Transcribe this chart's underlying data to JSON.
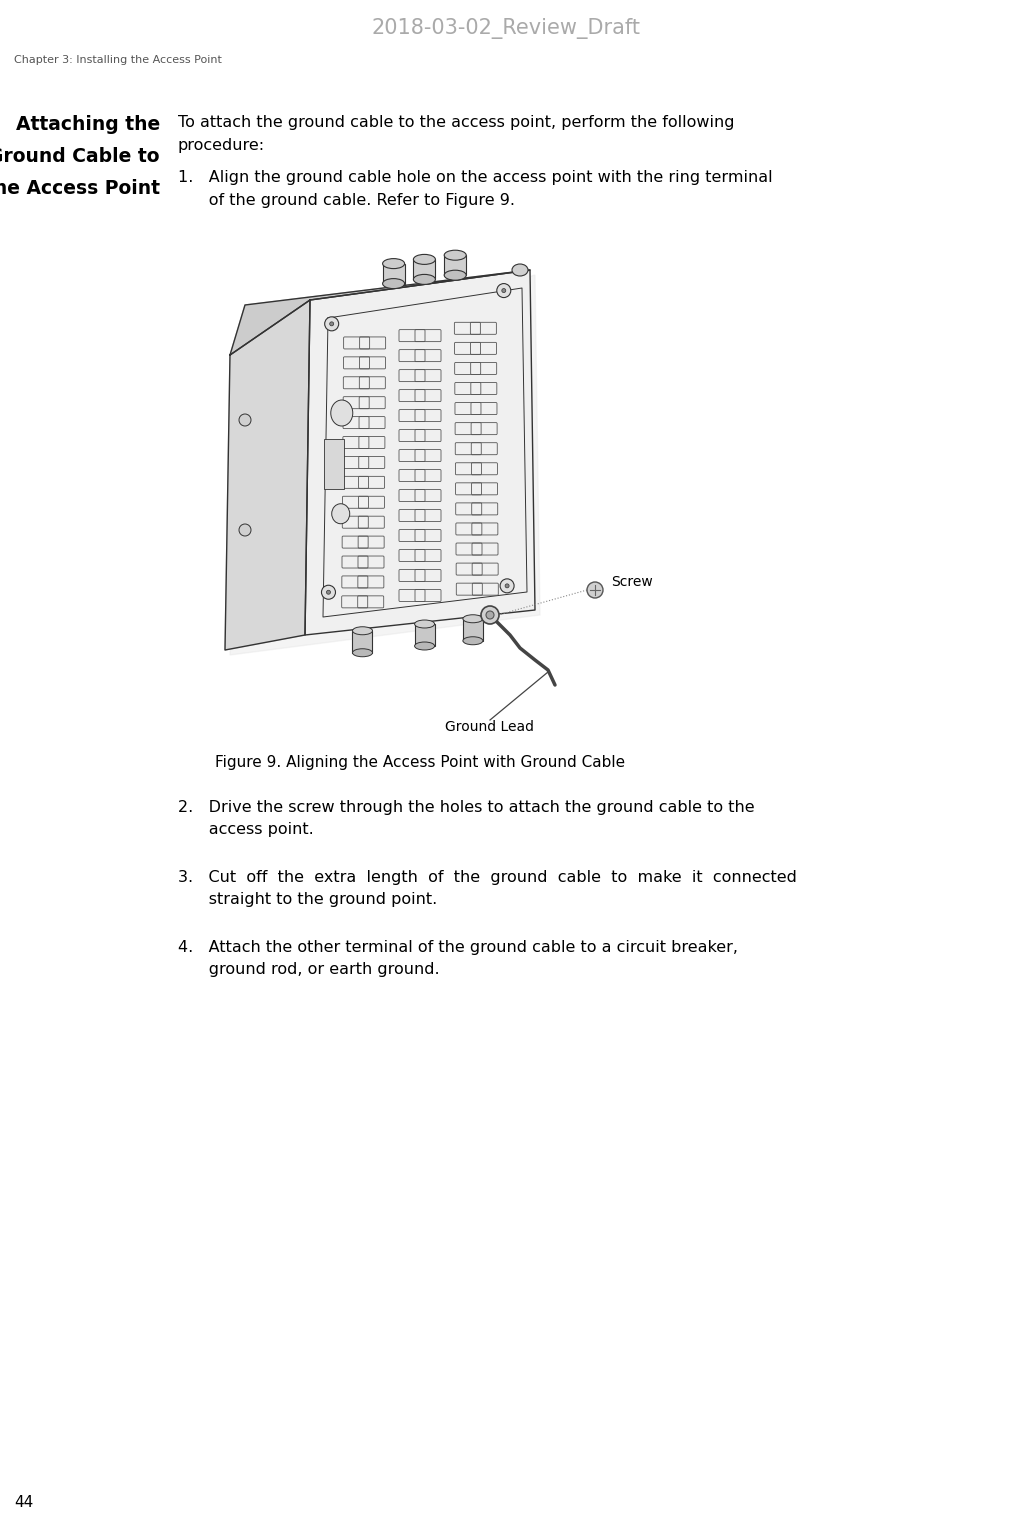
{
  "page_title": "2018-03-02_Review_Draft",
  "page_title_color": "#aaaaaa",
  "chapter_header": "Chapter 3: Installing the Access Point",
  "chapter_header_color": "#555555",
  "page_number": "44",
  "section_title_lines": [
    "Attaching the",
    "Ground Cable to",
    "the Access Point"
  ],
  "section_title_color": "#000000",
  "intro_text_line1": "To attach the ground cable to the access point, perform the following",
  "intro_text_line2": "procedure:",
  "step1_line1": "1.   Align the ground cable hole on the access point with the ring terminal",
  "step1_line2": "      of the ground cable. Refer to Figure 9.",
  "step2_line1": "2.   Drive the screw through the holes to attach the ground cable to the",
  "step2_line2": "      access point.",
  "step3_line1": "3.   Cut  off  the  extra  length  of  the  ground  cable  to  make  it  connected",
  "step3_line2": "      straight to the ground point.",
  "step4_line1": "4.   Attach the other terminal of the ground cable to a circuit breaker,",
  "step4_line2": "      ground rod, or earth ground.",
  "figure_caption": "Figure 9. Aligning the Access Point with Ground Cable",
  "figure_label_screw": "Screw",
  "figure_label_ground_lead": "Ground Lead",
  "background_color": "#ffffff",
  "text_color": "#000000",
  "outline_color": "#333333",
  "light_gray": "#e8e8e8",
  "mid_gray": "#c8c8c8",
  "dark_gray": "#888888"
}
